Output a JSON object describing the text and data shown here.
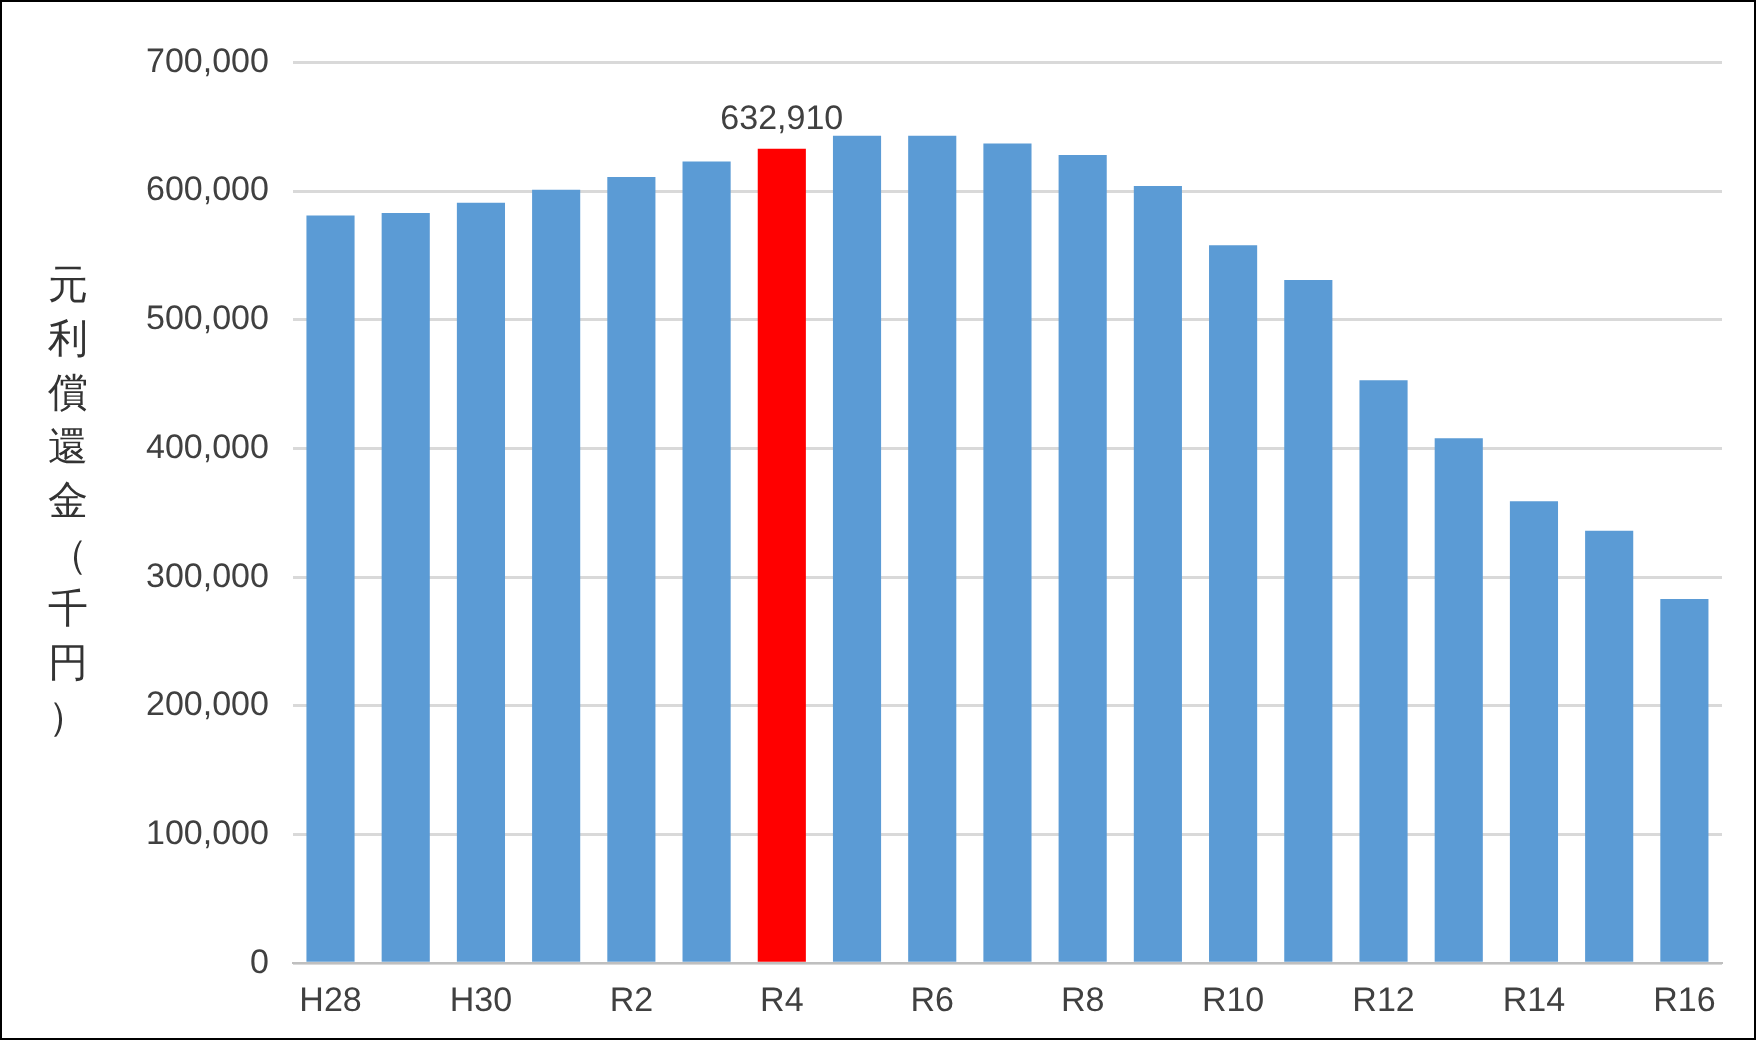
{
  "chart_data": {
    "type": "bar",
    "ylabel": "元利償還金（千円）",
    "categories": [
      "H28",
      null,
      "H30",
      null,
      "R2",
      null,
      "R4",
      null,
      "R6",
      null,
      "R8",
      null,
      "R10",
      null,
      "R12",
      null,
      "R14",
      null,
      "R16"
    ],
    "values": [
      581000,
      583000,
      591000,
      601000,
      611000,
      623000,
      632910,
      643000,
      643000,
      637000,
      628000,
      604000,
      558000,
      531000,
      453000,
      408000,
      359000,
      336000,
      283000
    ],
    "colors": [
      "#5b9bd5",
      "#5b9bd5",
      "#5b9bd5",
      "#5b9bd5",
      "#5b9bd5",
      "#5b9bd5",
      "#ff0000",
      "#5b9bd5",
      "#5b9bd5",
      "#5b9bd5",
      "#5b9bd5",
      "#5b9bd5",
      "#5b9bd5",
      "#5b9bd5",
      "#5b9bd5",
      "#5b9bd5",
      "#5b9bd5",
      "#5b9bd5",
      "#5b9bd5"
    ],
    "value_labels": [
      null,
      null,
      null,
      null,
      null,
      null,
      "632,910",
      null,
      null,
      null,
      null,
      null,
      null,
      null,
      null,
      null,
      null,
      null,
      null
    ],
    "ylim": [
      0,
      700000
    ],
    "yticks": [
      0,
      {
        "value": 100000,
        "label": "100,000"
      },
      {
        "value": 200000,
        "label": "200,000"
      },
      {
        "value": 300000,
        "label": "300,000"
      },
      {
        "value": 400000,
        "label": "400,000"
      },
      {
        "value": 500000,
        "label": "500,000"
      },
      {
        "value": 600000,
        "label": "600,000"
      },
      {
        "value": 700000,
        "label": "700,000"
      }
    ],
    "grid": "y",
    "legend": false
  }
}
